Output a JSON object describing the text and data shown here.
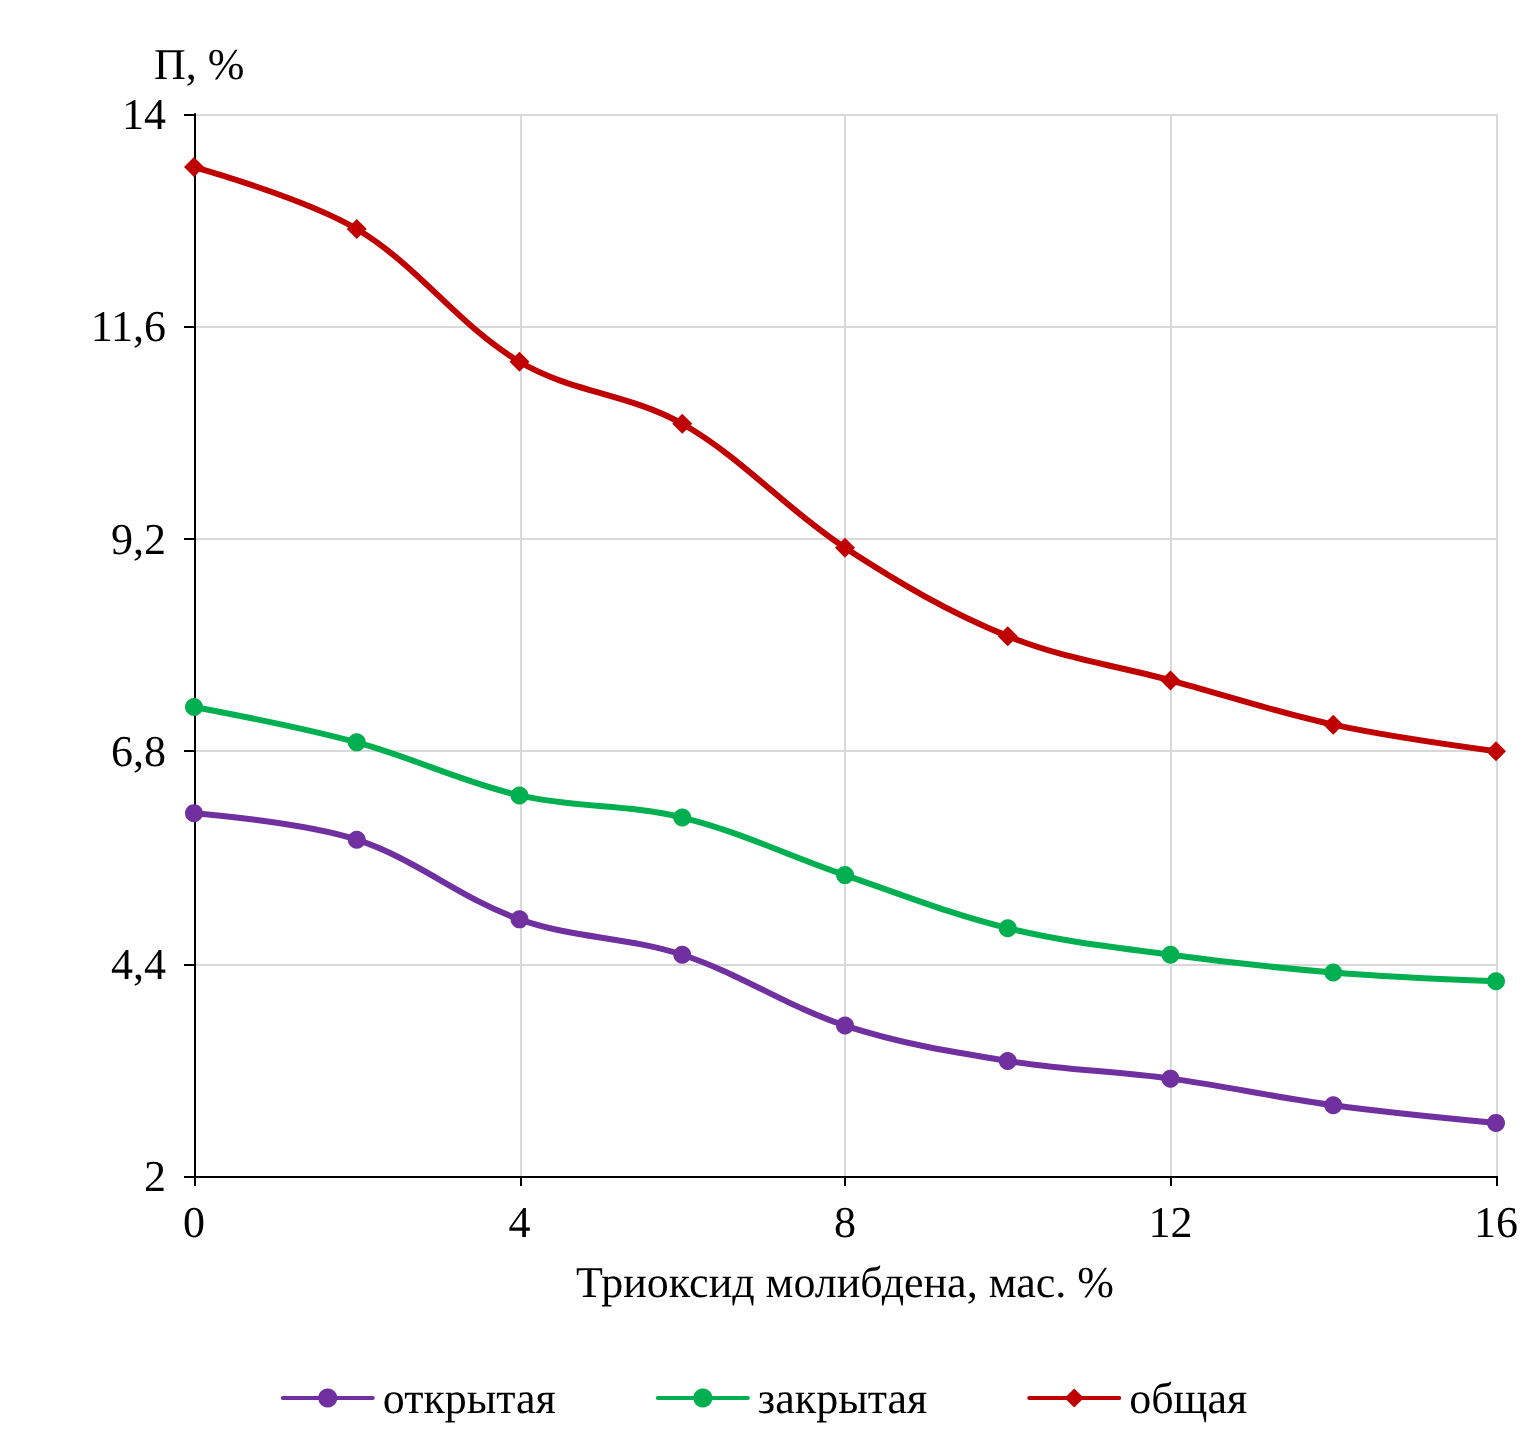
{
  "chart_data": {
    "type": "line",
    "xlabel": "Триоксид молибдена, мас. %",
    "ylabel": "П, %",
    "x": [
      0,
      2,
      4,
      6,
      8,
      10,
      12,
      14,
      16
    ],
    "series": [
      {
        "name": "открытая",
        "color": "#7030a0",
        "marker": "circle",
        "values": [
          6.1,
          5.8,
          4.9,
          4.5,
          3.7,
          3.3,
          3.1,
          2.8,
          2.6
        ]
      },
      {
        "name": "закрытая",
        "color": "#00b050",
        "marker": "circle",
        "values": [
          7.3,
          6.9,
          6.3,
          6.05,
          5.4,
          4.8,
          4.5,
          4.3,
          4.2
        ]
      },
      {
        "name": "общая",
        "color": "#c00000",
        "marker": "diamond",
        "values": [
          13.4,
          12.7,
          11.2,
          10.5,
          9.1,
          8.1,
          7.6,
          7.1,
          6.8
        ]
      }
    ],
    "xlim": [
      0,
      16
    ],
    "xticks": [
      0,
      4,
      8,
      12,
      16
    ],
    "ylim": [
      2,
      14
    ],
    "yticks": [
      2,
      {
        "value": 4.4,
        "label": "4,4"
      },
      {
        "value": 6.8,
        "label": "6,8"
      },
      {
        "value": 9.2,
        "label": "9,2"
      },
      {
        "value": 11.6,
        "label": "11,6"
      },
      14
    ],
    "grid": true,
    "legend": "bottom"
  }
}
